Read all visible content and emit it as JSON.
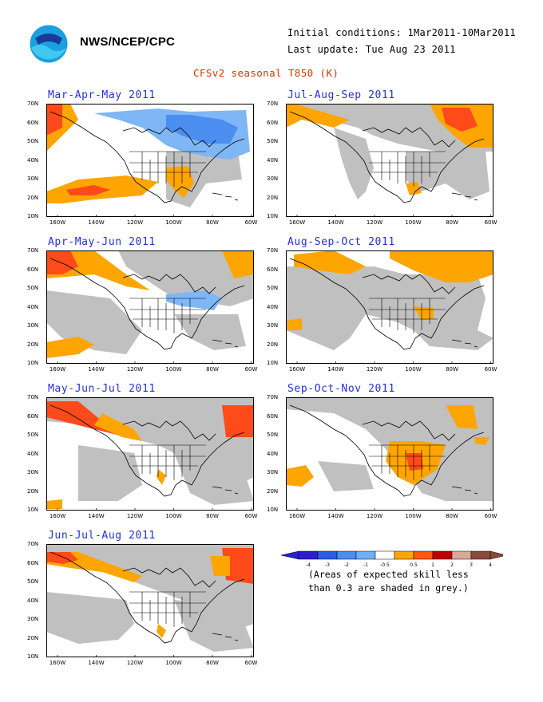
{
  "header": {
    "agency": "NWS/NCEP/CPC",
    "initial_conditions": "Initial conditions: 1Mar2011-10Mar2011",
    "last_update": "Last update: Tue Aug 23 2011",
    "title": "CFSv2 seasonal T850 (K)"
  },
  "axes": {
    "y_ticks": [
      "70N",
      "60N",
      "50N",
      "40N",
      "30N",
      "20N",
      "10N"
    ],
    "x_ticks": [
      "160W",
      "140W",
      "120W",
      "100W",
      "80W",
      "60W"
    ]
  },
  "panels": [
    {
      "title": "Mar-Apr-May 2011",
      "dominant": "cool-north-warm-pacific"
    },
    {
      "title": "Jul-Aug-Sep 2011",
      "dominant": "warm-east"
    },
    {
      "title": "Apr-May-Jun 2011",
      "dominant": "mixed"
    },
    {
      "title": "Aug-Sep-Oct 2011",
      "dominant": "warm-north"
    },
    {
      "title": "May-Jun-Jul 2011",
      "dominant": "warm-alaska"
    },
    {
      "title": "Sep-Oct-Nov 2011",
      "dominant": "warm-southwest"
    },
    {
      "title": "Jun-Jul-Aug 2011",
      "dominant": "warm-alaska-east"
    }
  ],
  "legend": {
    "labels": [
      "-4",
      "-3",
      "-2",
      "-1",
      "-0.5",
      "0.5",
      "1",
      "2",
      "3",
      "4"
    ],
    "colors": [
      "#2a1ed0",
      "#2c5ce8",
      "#4a8ef0",
      "#6fb0f6",
      "#ffffff",
      "#ffa500",
      "#ff5a10",
      "#c00000",
      "#d8a898",
      "#8a4a3a"
    ],
    "note_line1": "(Areas of expected skill less",
    "note_line2": "than 0.3 are shaded in grey.)"
  },
  "colors": {
    "grey": "#c0c0c0",
    "orange": "#ffa500",
    "red": "#ff4a1a",
    "light_blue": "#7fb6f6",
    "blue": "#4a8ef0",
    "title_blue": "#2430d8",
    "title_red": "#d03a00"
  }
}
